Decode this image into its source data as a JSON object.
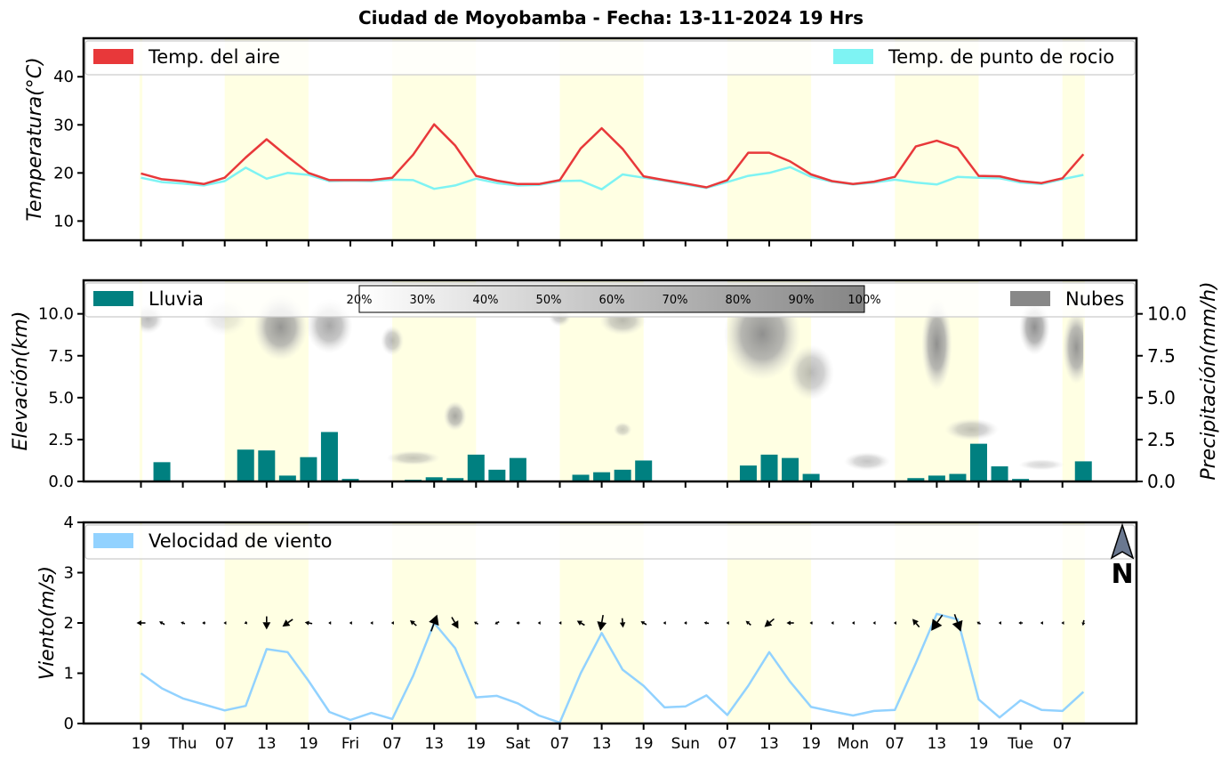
{
  "title": "Ciudad de Moyobamba   -   Fecha: 13-11-2024 19 Hrs",
  "x_tick_labels": [
    "19",
    "Thu",
    "07",
    "13",
    "19",
    "Fri",
    "07",
    "13",
    "19",
    "Sat",
    "07",
    "13",
    "19",
    "Sun",
    "07",
    "13",
    "19",
    "Mon",
    "07",
    "13",
    "19",
    "Tue",
    "07"
  ],
  "chart_data": [
    {
      "type": "line",
      "panel": "temperature",
      "ylabel": "Temperatura(°C)",
      "yticks": [
        10,
        20,
        30,
        40
      ],
      "ylim": [
        6,
        48
      ],
      "x_hours": [
        0,
        3,
        6,
        9,
        12,
        15,
        18,
        21,
        24,
        27,
        30,
        33,
        36,
        39,
        42,
        45,
        48,
        51,
        54,
        57,
        60,
        63,
        66,
        69,
        72,
        75,
        78,
        81,
        84,
        87,
        90,
        93,
        96,
        99,
        102,
        105,
        108,
        111,
        114,
        117,
        120,
        123,
        126,
        129,
        132,
        135
      ],
      "legend": {
        "left": "Temp. del aire",
        "right": "Temp. de punto de rocio"
      },
      "series": [
        {
          "name": "Temp. del aire",
          "color": "#e8383a",
          "values": [
            19.9,
            18.7,
            18.3,
            17.7,
            19.0,
            23.2,
            27.0,
            23.4,
            20.0,
            18.5,
            18.5,
            18.5,
            19.0,
            23.8,
            30.1,
            25.7,
            19.4,
            18.4,
            17.7,
            17.7,
            18.5,
            25.1,
            29.3,
            25.0,
            19.3,
            18.5,
            17.8,
            17.0,
            18.5,
            24.2,
            24.2,
            22.4,
            19.7,
            18.3,
            17.7,
            18.2,
            19.2,
            25.5,
            26.7,
            25.2,
            19.4,
            19.3,
            18.3,
            17.9,
            18.9,
            23.9
          ]
        },
        {
          "name": "Temp. de punto de rocio",
          "color": "#7ef3f3",
          "values": [
            19.0,
            18.1,
            17.8,
            17.4,
            18.3,
            21.1,
            18.8,
            20.0,
            19.6,
            18.3,
            18.4,
            18.3,
            18.6,
            18.5,
            16.7,
            17.4,
            18.8,
            17.9,
            17.4,
            17.5,
            18.3,
            18.4,
            16.6,
            19.7,
            19.0,
            18.4,
            17.6,
            16.9,
            18.1,
            19.4,
            20.0,
            21.2,
            19.2,
            18.2,
            17.6,
            18.0,
            18.6,
            18.0,
            17.6,
            19.2,
            19.0,
            18.9,
            18.0,
            17.7,
            18.7,
            19.6
          ]
        }
      ]
    },
    {
      "type": "bar",
      "panel": "precipitation",
      "ylabel_left": "Elevación(km)",
      "ylabel_right": "Precipitación(mm/h)",
      "yticks": [
        "0.0",
        "2.5",
        "5.0",
        "7.5",
        "10.0"
      ],
      "ylim": [
        0,
        12
      ],
      "x_hours": [
        0,
        3,
        6,
        9,
        12,
        15,
        18,
        21,
        24,
        27,
        30,
        33,
        36,
        39,
        42,
        45,
        48,
        51,
        54,
        57,
        60,
        63,
        66,
        69,
        72,
        75,
        78,
        81,
        84,
        87,
        90,
        93,
        96,
        99,
        102,
        105,
        108,
        111,
        114,
        117,
        120,
        123,
        126,
        129,
        132,
        135
      ],
      "series": [
        {
          "name": "Lluvia",
          "color": "#008080",
          "values": [
            0,
            1.15,
            0.03,
            0.05,
            0.05,
            1.9,
            1.85,
            0.35,
            1.45,
            2.95,
            0.15,
            0.02,
            0.02,
            0.1,
            0.25,
            0.2,
            1.6,
            0.7,
            1.4,
            0,
            0,
            0.4,
            0.55,
            0.7,
            1.25,
            0,
            0,
            0,
            0.05,
            0.95,
            1.6,
            1.4,
            0.45,
            0,
            0,
            0,
            0.02,
            0.2,
            0.35,
            0.45,
            2.25,
            0.9,
            0.15,
            0,
            0.05,
            1.2
          ]
        }
      ],
      "cloud_legend": "Nubes",
      "colorbar_labels": [
        "20%",
        "30%",
        "40%",
        "50%",
        "60%",
        "70%",
        "80%",
        "90%",
        "100%"
      ],
      "cloud_patches": [
        {
          "hour": 1,
          "km": 9.7,
          "spread_h": 2.0,
          "spread_km": 0.8,
          "cover": 0.6
        },
        {
          "hour": 12,
          "km": 9.8,
          "spread_h": 3.0,
          "spread_km": 1.0,
          "cover": 0.25
        },
        {
          "hour": 20,
          "km": 9.2,
          "spread_h": 3.5,
          "spread_km": 1.8,
          "cover": 0.9
        },
        {
          "hour": 27,
          "km": 9.3,
          "spread_h": 3.0,
          "spread_km": 1.5,
          "cover": 0.75
        },
        {
          "hour": 36,
          "km": 8.4,
          "spread_h": 1.5,
          "spread_km": 0.8,
          "cover": 0.6
        },
        {
          "hour": 45,
          "km": 3.9,
          "spread_h": 1.5,
          "spread_km": 0.8,
          "cover": 0.75
        },
        {
          "hour": 60,
          "km": 9.9,
          "spread_h": 1.5,
          "spread_km": 0.6,
          "cover": 0.6
        },
        {
          "hour": 69,
          "km": 9.6,
          "spread_h": 3.0,
          "spread_km": 0.8,
          "cover": 0.6
        },
        {
          "hour": 69,
          "km": 3.1,
          "spread_h": 1.2,
          "spread_km": 0.4,
          "cover": 0.45
        },
        {
          "hour": 89,
          "km": 8.8,
          "spread_h": 5.0,
          "spread_km": 2.5,
          "cover": 0.95
        },
        {
          "hour": 96,
          "km": 6.5,
          "spread_h": 3.0,
          "spread_km": 1.5,
          "cover": 0.6
        },
        {
          "hour": 104,
          "km": 1.2,
          "spread_h": 3.0,
          "spread_km": 0.5,
          "cover": 0.5
        },
        {
          "hour": 114,
          "km": 8.2,
          "spread_h": 2.0,
          "spread_km": 2.5,
          "cover": 0.95
        },
        {
          "hour": 119,
          "km": 3.1,
          "spread_h": 3.5,
          "spread_km": 0.6,
          "cover": 0.55
        },
        {
          "hour": 128,
          "km": 9.2,
          "spread_h": 2.0,
          "spread_km": 1.5,
          "cover": 0.95
        },
        {
          "hour": 134,
          "km": 8.0,
          "spread_h": 1.8,
          "spread_km": 2.0,
          "cover": 0.9
        },
        {
          "hour": 39,
          "km": 1.4,
          "spread_h": 3.5,
          "spread_km": 0.4,
          "cover": 0.5
        },
        {
          "hour": 129,
          "km": 1.0,
          "spread_h": 3.0,
          "spread_km": 0.3,
          "cover": 0.35
        }
      ]
    },
    {
      "type": "line",
      "panel": "wind",
      "ylabel": "Viento(m/s)",
      "yticks": [
        0,
        1,
        2,
        3,
        4
      ],
      "ylim": [
        0,
        4
      ],
      "north_label": "N",
      "x_hours": [
        0,
        3,
        6,
        9,
        12,
        15,
        18,
        21,
        24,
        27,
        30,
        33,
        36,
        39,
        42,
        45,
        48,
        51,
        54,
        57,
        60,
        63,
        66,
        69,
        72,
        75,
        78,
        81,
        84,
        87,
        90,
        93,
        96,
        99,
        102,
        105,
        108,
        111,
        114,
        117,
        120,
        123,
        126,
        129,
        132,
        135
      ],
      "series": [
        {
          "name": "Velocidad de viento",
          "color": "#92d2ff",
          "values": [
            1.0,
            0.7,
            0.5,
            0.38,
            0.26,
            0.35,
            1.48,
            1.42,
            0.85,
            0.23,
            0.07,
            0.21,
            0.09,
            0.95,
            2.0,
            1.5,
            0.52,
            0.55,
            0.4,
            0.16,
            0.02,
            1.0,
            1.8,
            1.07,
            0.75,
            0.32,
            0.34,
            0.56,
            0.17,
            0.75,
            1.42,
            0.83,
            0.33,
            0.24,
            0.16,
            0.25,
            0.27,
            1.2,
            2.18,
            2.07,
            0.48,
            0.12,
            0.46,
            0.27,
            0.25,
            0.63
          ]
        }
      ],
      "wind_arrows": [
        {
          "hour": 0,
          "dir": 270,
          "spd": 1.0
        },
        {
          "hour": 3,
          "dir": 300,
          "spd": 0.7
        },
        {
          "hour": 6,
          "dir": 290,
          "spd": 0.5
        },
        {
          "hour": 9,
          "dir": 270,
          "spd": 0.38
        },
        {
          "hour": 12,
          "dir": 270,
          "spd": 0.26
        },
        {
          "hour": 15,
          "dir": 250,
          "spd": 0.35
        },
        {
          "hour": 18,
          "dir": 180,
          "spd": 1.48
        },
        {
          "hour": 21,
          "dir": 235,
          "spd": 1.42
        },
        {
          "hour": 24,
          "dir": 280,
          "spd": 0.85
        },
        {
          "hour": 27,
          "dir": 270,
          "spd": 0.23
        },
        {
          "hour": 30,
          "dir": 270,
          "spd": 0.07
        },
        {
          "hour": 33,
          "dir": 270,
          "spd": 0.21
        },
        {
          "hour": 36,
          "dir": 270,
          "spd": 0.09
        },
        {
          "hour": 39,
          "dir": 310,
          "spd": 0.95
        },
        {
          "hour": 42,
          "dir": 20,
          "spd": 2.0
        },
        {
          "hour": 45,
          "dir": 150,
          "spd": 1.5
        },
        {
          "hour": 48,
          "dir": 300,
          "spd": 0.52
        },
        {
          "hour": 51,
          "dir": 240,
          "spd": 0.55
        },
        {
          "hour": 54,
          "dir": 270,
          "spd": 0.4
        },
        {
          "hour": 57,
          "dir": 270,
          "spd": 0.16
        },
        {
          "hour": 60,
          "dir": 270,
          "spd": 0.02
        },
        {
          "hour": 63,
          "dir": 300,
          "spd": 1.0
        },
        {
          "hour": 66,
          "dir": 190,
          "spd": 1.8
        },
        {
          "hour": 69,
          "dir": 175,
          "spd": 1.07
        },
        {
          "hour": 72,
          "dir": 300,
          "spd": 0.75
        },
        {
          "hour": 75,
          "dir": 270,
          "spd": 0.32
        },
        {
          "hour": 78,
          "dir": 270,
          "spd": 0.34
        },
        {
          "hour": 81,
          "dir": 280,
          "spd": 0.56
        },
        {
          "hour": 84,
          "dir": 270,
          "spd": 0.17
        },
        {
          "hour": 87,
          "dir": 310,
          "spd": 0.75
        },
        {
          "hour": 90,
          "dir": 230,
          "spd": 1.42
        },
        {
          "hour": 93,
          "dir": 270,
          "spd": 0.83
        },
        {
          "hour": 96,
          "dir": 270,
          "spd": 0.33
        },
        {
          "hour": 99,
          "dir": 270,
          "spd": 0.24
        },
        {
          "hour": 102,
          "dir": 270,
          "spd": 0.16
        },
        {
          "hour": 105,
          "dir": 270,
          "spd": 0.25
        },
        {
          "hour": 108,
          "dir": 270,
          "spd": 0.27
        },
        {
          "hour": 111,
          "dir": 320,
          "spd": 1.2
        },
        {
          "hour": 114,
          "dir": 215,
          "spd": 2.18
        },
        {
          "hour": 117,
          "dir": 160,
          "spd": 2.07
        },
        {
          "hour": 120,
          "dir": 300,
          "spd": 0.48
        },
        {
          "hour": 123,
          "dir": 270,
          "spd": 0.12
        },
        {
          "hour": 126,
          "dir": 270,
          "spd": 0.46
        },
        {
          "hour": 129,
          "dir": 270,
          "spd": 0.27
        },
        {
          "hour": 132,
          "dir": 270,
          "spd": 0.25
        },
        {
          "hour": 135,
          "dir": 190,
          "spd": 0.63
        }
      ]
    }
  ],
  "daylight_bands": [
    [
      -0.2,
      0.2
    ],
    [
      12,
      24
    ],
    [
      36,
      48
    ],
    [
      60,
      72
    ],
    [
      84,
      96
    ],
    [
      108,
      120
    ],
    [
      132,
      135.2
    ]
  ],
  "colors": {
    "daylight": "#ffffe3",
    "legend_border": "#cccccc"
  }
}
